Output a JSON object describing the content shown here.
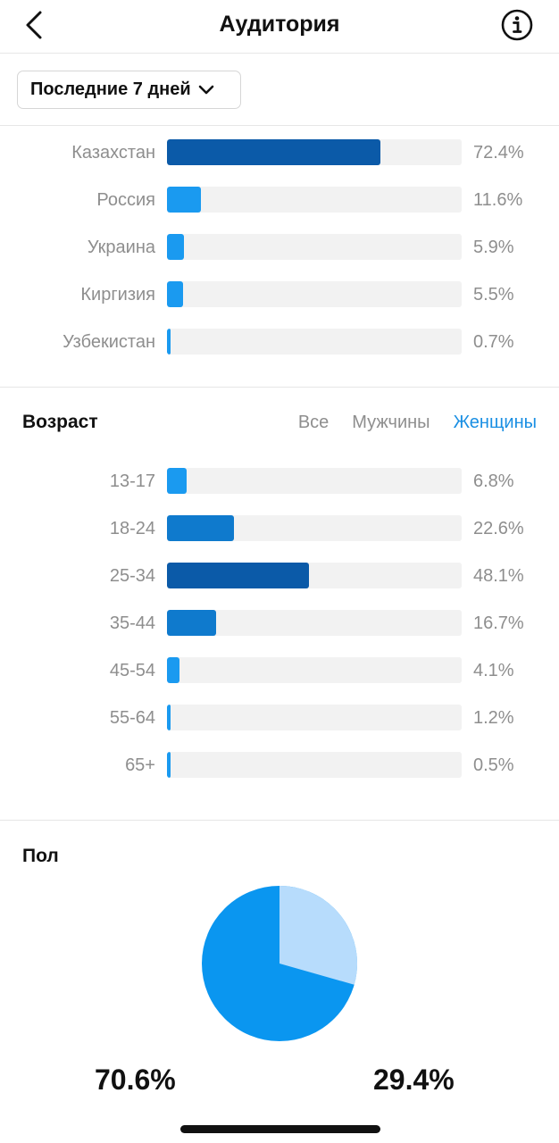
{
  "header": {
    "title": "Аудитория",
    "back_icon": "chevron-left-icon",
    "info_icon": "info-icon"
  },
  "period": {
    "label": "Последние 7 дней",
    "icon": "chevron-down-icon"
  },
  "countries": [
    {
      "label": "Казахстан",
      "value": "72.4%",
      "fraction": 0.724,
      "color": "#0b5aa8"
    },
    {
      "label": "Россия",
      "value": "11.6%",
      "fraction": 0.116,
      "color": "#1a9af0"
    },
    {
      "label": "Украина",
      "value": "5.9%",
      "fraction": 0.059,
      "color": "#1a9af0"
    },
    {
      "label": "Киргизия",
      "value": "5.5%",
      "fraction": 0.055,
      "color": "#1a9af0"
    },
    {
      "label": "Узбекистан",
      "value": "0.7%",
      "fraction": 0.007,
      "color": "#1a9af0"
    }
  ],
  "age": {
    "title": "Возраст",
    "filters": [
      "Все",
      "Мужчины",
      "Женщины"
    ],
    "active_filter": "Женщины",
    "rows": [
      {
        "label": "13-17",
        "value": "6.8%",
        "fraction": 0.068,
        "color": "#1a9af0"
      },
      {
        "label": "18-24",
        "value": "22.6%",
        "fraction": 0.226,
        "color": "#0f7acd"
      },
      {
        "label": "25-34",
        "value": "48.1%",
        "fraction": 0.481,
        "color": "#0b5aa8"
      },
      {
        "label": "35-44",
        "value": "16.7%",
        "fraction": 0.167,
        "color": "#0f7acd"
      },
      {
        "label": "45-54",
        "value": "4.1%",
        "fraction": 0.041,
        "color": "#1a9af0"
      },
      {
        "label": "55-64",
        "value": "1.2%",
        "fraction": 0.012,
        "color": "#1a9af0"
      },
      {
        "label": "65+",
        "value": "0.5%",
        "fraction": 0.005,
        "color": "#1a9af0"
      }
    ]
  },
  "gender": {
    "title": "Пол",
    "left_pct": "70.6%",
    "right_pct": "29.4%",
    "left_color": "#0a96f0",
    "right_color": "#b7dcfc"
  },
  "chart_data": [
    {
      "type": "bar",
      "categories": [
        "Казахстан",
        "Россия",
        "Украина",
        "Киргизия",
        "Узбекистан"
      ],
      "values": [
        72.4,
        11.6,
        5.9,
        5.5,
        0.7
      ]
    },
    {
      "type": "bar",
      "title": "Возраст",
      "categories": [
        "13-17",
        "18-24",
        "25-34",
        "35-44",
        "45-54",
        "55-64",
        "65+"
      ],
      "values": [
        6.8,
        22.6,
        48.1,
        16.7,
        4.1,
        1.2,
        0.5
      ]
    },
    {
      "type": "pie",
      "title": "Пол",
      "values": [
        70.6,
        29.4
      ]
    }
  ]
}
